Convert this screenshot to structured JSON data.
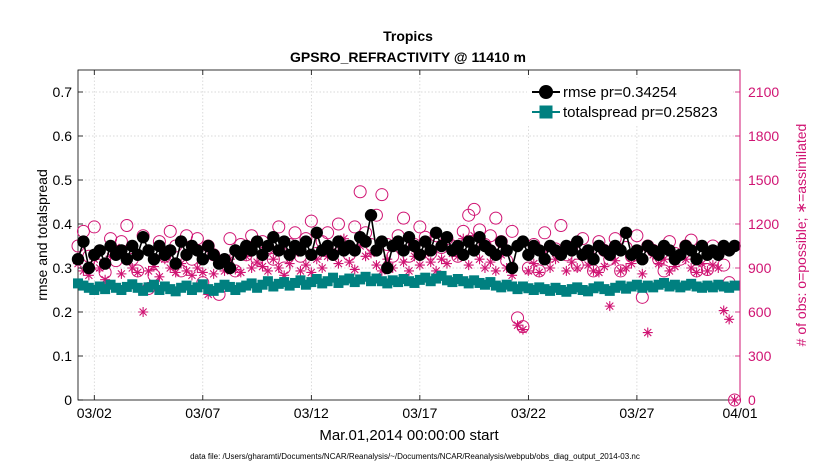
{
  "chart_data": {
    "type": "line",
    "title": "Tropics",
    "subtitle": "GPSRO_REFRACTIVITY @ 11410 m",
    "xlabel": "Mar.01,2014 00:00:00 start",
    "ylabel": "rmse and totalspread",
    "y2label": "# of obs: o=possible; ∗=assimilated",
    "footnote": "data file: /Users/gharamti/Documents/NCAR/Reanalysis/~/Documents/NCAR/Reanalysis/webpub/obs_diag_output_2014-03.nc",
    "xlim": [
      0.5,
      31.0
    ],
    "ylim": [
      0,
      0.75
    ],
    "y2lim": [
      0,
      2250
    ],
    "grid": true,
    "legend_position": "top-right",
    "x_ticks": [
      {
        "value": 1.25,
        "label": "03/02"
      },
      {
        "value": 6.25,
        "label": "03/07"
      },
      {
        "value": 11.25,
        "label": "03/12"
      },
      {
        "value": 16.25,
        "label": "03/17"
      },
      {
        "value": 21.25,
        "label": "03/22"
      },
      {
        "value": 26.25,
        "label": "03/27"
      },
      {
        "value": 31.0,
        "label": "04/01"
      }
    ],
    "y_ticks": [
      {
        "value": 0,
        "label": "0"
      },
      {
        "value": 0.1,
        "label": "0.1"
      },
      {
        "value": 0.2,
        "label": "0.2"
      },
      {
        "value": 0.3,
        "label": "0.3"
      },
      {
        "value": 0.4,
        "label": "0.4"
      },
      {
        "value": 0.5,
        "label": "0.5"
      },
      {
        "value": 0.6,
        "label": "0.6"
      },
      {
        "value": 0.7,
        "label": "0.7"
      }
    ],
    "y2_ticks": [
      {
        "value": 0,
        "label": "0"
      },
      {
        "value": 300,
        "label": "300"
      },
      {
        "value": 600,
        "label": "600"
      },
      {
        "value": 900,
        "label": "900"
      },
      {
        "value": 1200,
        "label": "1200"
      },
      {
        "value": 1500,
        "label": "1500"
      },
      {
        "value": 1800,
        "label": "1800"
      },
      {
        "value": 2100,
        "label": "2100"
      }
    ],
    "x": [
      0.5,
      0.75,
      1,
      1.25,
      1.5,
      1.75,
      2,
      2.25,
      2.5,
      2.75,
      3,
      3.25,
      3.5,
      3.75,
      4,
      4.25,
      4.5,
      4.75,
      5,
      5.25,
      5.5,
      5.75,
      6,
      6.25,
      6.5,
      6.75,
      7,
      7.25,
      7.5,
      7.75,
      8,
      8.25,
      8.5,
      8.75,
      9,
      9.25,
      9.5,
      9.75,
      10,
      10.25,
      10.5,
      10.75,
      11,
      11.25,
      11.5,
      11.75,
      12,
      12.25,
      12.5,
      12.75,
      13,
      13.25,
      13.5,
      13.75,
      14,
      14.25,
      14.5,
      14.75,
      15,
      15.25,
      15.5,
      15.75,
      16,
      16.25,
      16.5,
      16.75,
      17,
      17.25,
      17.5,
      17.75,
      18,
      18.25,
      18.5,
      18.75,
      19,
      19.25,
      19.5,
      19.75,
      20,
      20.25,
      20.5,
      20.75,
      21,
      21.25,
      21.5,
      21.75,
      22,
      22.25,
      22.5,
      22.75,
      23,
      23.25,
      23.5,
      23.75,
      24,
      24.25,
      24.5,
      24.75,
      25,
      25.25,
      25.5,
      25.75,
      26,
      26.25,
      26.5,
      26.75,
      27,
      27.25,
      27.5,
      27.75,
      28,
      28.25,
      28.5,
      28.75,
      29,
      29.25,
      29.5,
      29.75,
      30,
      30.25,
      30.5,
      30.75
    ],
    "series": [
      {
        "name": "rmse",
        "legend_label": "rmse pr=0.34254",
        "axis": "left",
        "color": "#000000",
        "marker": "circle",
        "values": [
          0.32,
          0.36,
          0.3,
          0.33,
          0.34,
          0.31,
          0.35,
          0.33,
          0.34,
          0.32,
          0.35,
          0.33,
          0.37,
          0.34,
          0.32,
          0.35,
          0.33,
          0.34,
          0.31,
          0.36,
          0.33,
          0.35,
          0.34,
          0.32,
          0.35,
          0.33,
          0.31,
          0.32,
          0.3,
          0.34,
          0.33,
          0.35,
          0.34,
          0.36,
          0.33,
          0.35,
          0.37,
          0.34,
          0.36,
          0.33,
          0.35,
          0.34,
          0.36,
          0.33,
          0.38,
          0.34,
          0.35,
          0.33,
          0.36,
          0.34,
          0.35,
          0.34,
          0.37,
          0.36,
          0.42,
          0.34,
          0.36,
          0.3,
          0.35,
          0.36,
          0.34,
          0.37,
          0.35,
          0.33,
          0.36,
          0.34,
          0.38,
          0.35,
          0.37,
          0.34,
          0.35,
          0.33,
          0.36,
          0.34,
          0.37,
          0.35,
          0.34,
          0.33,
          0.36,
          0.34,
          0.3,
          0.35,
          0.36,
          0.33,
          0.35,
          0.34,
          0.32,
          0.35,
          0.34,
          0.33,
          0.35,
          0.34,
          0.36,
          0.33,
          0.34,
          0.32,
          0.35,
          0.34,
          0.33,
          0.35,
          0.34,
          0.38,
          0.33,
          0.34,
          0.32,
          0.35,
          0.34,
          0.33,
          0.35,
          0.34,
          0.32,
          0.33,
          0.35,
          0.34,
          0.32,
          0.35,
          0.33,
          0.34,
          0.33,
          0.35,
          0.34,
          0.35
        ]
      },
      {
        "name": "totalspread",
        "legend_label": "totalspread pr=0.25823",
        "axis": "left",
        "color": "#008080",
        "marker": "square",
        "values": [
          0.265,
          0.26,
          0.255,
          0.25,
          0.258,
          0.252,
          0.262,
          0.255,
          0.25,
          0.257,
          0.263,
          0.255,
          0.248,
          0.256,
          0.262,
          0.25,
          0.258,
          0.252,
          0.247,
          0.255,
          0.26,
          0.25,
          0.256,
          0.263,
          0.252,
          0.248,
          0.255,
          0.262,
          0.257,
          0.25,
          0.256,
          0.26,
          0.265,
          0.255,
          0.262,
          0.27,
          0.258,
          0.264,
          0.268,
          0.26,
          0.266,
          0.272,
          0.262,
          0.268,
          0.275,
          0.265,
          0.27,
          0.278,
          0.266,
          0.272,
          0.276,
          0.268,
          0.274,
          0.28,
          0.27,
          0.276,
          0.27,
          0.265,
          0.272,
          0.268,
          0.275,
          0.27,
          0.266,
          0.273,
          0.278,
          0.27,
          0.276,
          0.282,
          0.272,
          0.268,
          0.275,
          0.27,
          0.265,
          0.272,
          0.266,
          0.262,
          0.268,
          0.26,
          0.256,
          0.262,
          0.258,
          0.252,
          0.258,
          0.254,
          0.25,
          0.256,
          0.252,
          0.248,
          0.255,
          0.25,
          0.246,
          0.252,
          0.256,
          0.25,
          0.247,
          0.254,
          0.258,
          0.252,
          0.248,
          0.255,
          0.26,
          0.253,
          0.258,
          0.262,
          0.255,
          0.26,
          0.256,
          0.262,
          0.266,
          0.258,
          0.262,
          0.256,
          0.26,
          0.264,
          0.258,
          0.255,
          0.26,
          0.256,
          0.262,
          0.258,
          0.255,
          0.26
        ]
      },
      {
        "name": "possible",
        "legend_label": "",
        "axis": "right",
        "color": "#d01473",
        "marker": "open-circle",
        "values": [
          1050,
          1150,
          980,
          1180,
          920,
          870,
          1100,
          950,
          1080,
          1190,
          960,
          880,
          1120,
          760,
          850,
          1080,
          980,
          1150,
          1050,
          880,
          1120,
          960,
          1100,
          800,
          1050,
          990,
          720,
          950,
          1100,
          880,
          1060,
          990,
          1120,
          960,
          1080,
          1040,
          960,
          1180,
          900,
          1060,
          1140,
          980,
          1100,
          1220,
          1000,
          1080,
          1140,
          1020,
          1200,
          1040,
          990,
          1180,
          1420,
          1140,
          1060,
          1260,
          1400,
          1060,
          980,
          1120,
          1240,
          980,
          1060,
          1180,
          1110,
          1000,
          1120,
          1040,
          1100,
          1050,
          980,
          1150,
          1260,
          1300,
          1160,
          1060,
          1120,
          1240,
          1080,
          950,
          1150,
          560,
          500,
          900,
          1060,
          880,
          1140,
          980,
          1030,
          1190,
          990,
          1040,
          920,
          1100,
          1000,
          880,
          1080,
          1020,
          960,
          1100,
          880,
          1040,
          980,
          1120,
          700,
          1050,
          1020,
          960,
          880,
          1080,
          1000,
          960,
          1050,
          1090,
          880,
          1010,
          890,
          1050,
          1000,
          920,
          800,
          0
        ]
      },
      {
        "name": "assimilated",
        "legend_label": "",
        "axis": "right",
        "color": "#d01473",
        "marker": "asterisk",
        "values": [
          930,
          880,
          850,
          960,
          900,
          820,
          980,
          1040,
          860,
          950,
          900,
          870,
          600,
          880,
          910,
          840,
          960,
          900,
          870,
          930,
          880,
          850,
          900,
          870,
          720,
          860,
          930,
          880,
          960,
          890,
          870,
          980,
          900,
          940,
          910,
          880,
          960,
          900,
          850,
          930,
          1000,
          880,
          920,
          870,
          960,
          900,
          980,
          1020,
          930,
          1100,
          940,
          890,
          1050,
          980,
          1000,
          920,
          880,
          960,
          900,
          1070,
          940,
          880,
          980,
          920,
          1000,
          940,
          880,
          960,
          930,
          1000,
          980,
          1100,
          920,
          1120,
          960,
          900,
          940,
          880,
          990,
          900,
          850,
          510,
          480,
          880,
          930,
          870,
          1030,
          900,
          960,
          1020,
          880,
          940,
          900,
          1000,
          920,
          880,
          870,
          910,
          640,
          950,
          880,
          900,
          930,
          980,
          860,
          460,
          990,
          930,
          960,
          880,
          910,
          980,
          960,
          900,
          870,
          930,
          880,
          920,
          900,
          610,
          550,
          0
        ]
      }
    ]
  }
}
